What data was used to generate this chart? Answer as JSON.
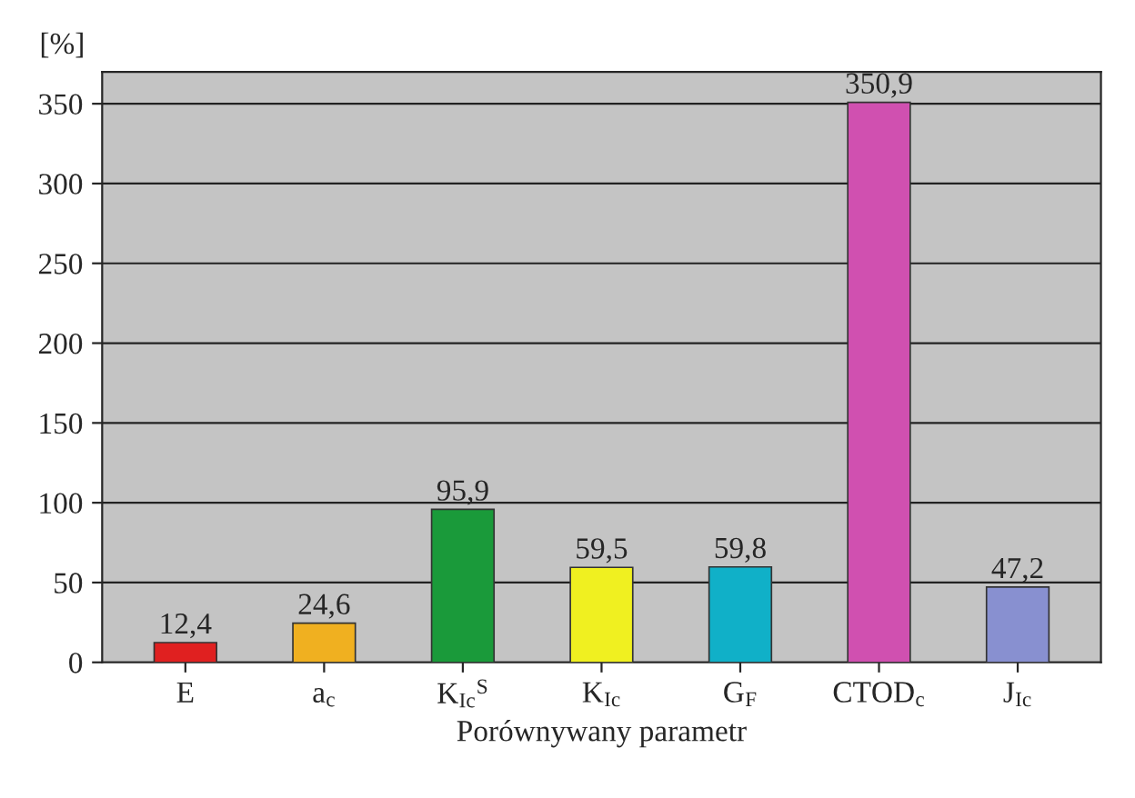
{
  "chart_data": {
    "type": "bar",
    "xlabel": "Porównywany parametr",
    "ylabel": "[%]",
    "categories": [
      "E",
      "a$_{c}$",
      "K$_{Ic}$$^{S}$",
      "K$_{Ic}$",
      "G$_{F}$",
      "CTOD$_{c}$",
      "J$_{Ic}$"
    ],
    "values": [
      12.4,
      24.6,
      95.9,
      59.5,
      59.8,
      350.9,
      47.2
    ],
    "value_labels": [
      "12,4",
      "24,6",
      "95,9",
      "59,5",
      "59,8",
      "350,9",
      "47,2"
    ],
    "colors": [
      "#e02020",
      "#f0b020",
      "#1a9a3a",
      "#f0f020",
      "#10b0c8",
      "#d050b0",
      "#8890d0"
    ],
    "ylim": [
      0,
      370
    ],
    "yticks": [
      0,
      50,
      100,
      150,
      200,
      250,
      300,
      350
    ],
    "grid": "y",
    "legend": false
  }
}
